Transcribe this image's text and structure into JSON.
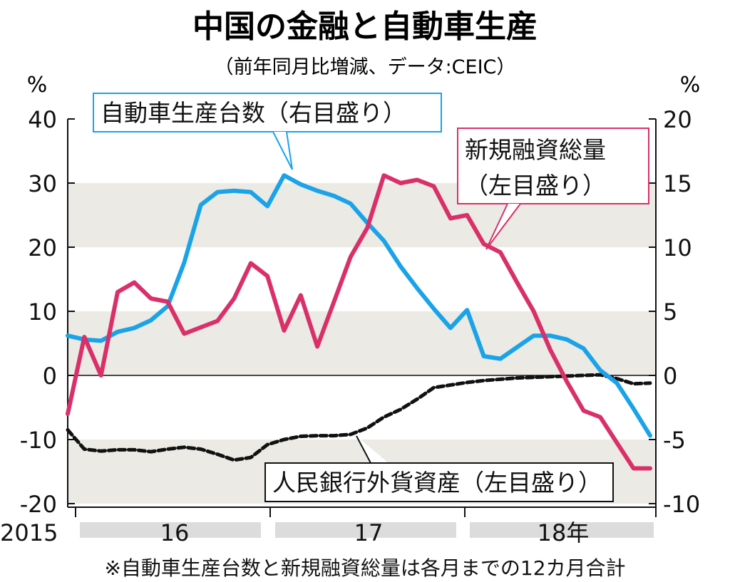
{
  "chart_data": {
    "type": "line",
    "title": "中国の金融と自動車生産",
    "subtitle": "（前年同月比増減、データ:CEIC）",
    "left_unit": "%",
    "right_unit": "%",
    "left_axis": {
      "ylim": [
        -20,
        40
      ],
      "ticks": [
        "40",
        "30",
        "20",
        "10",
        "0",
        "-10",
        "-20"
      ]
    },
    "right_axis": {
      "ylim": [
        -10,
        20
      ],
      "ticks": [
        "20",
        "15",
        "10",
        "5",
        "0",
        "-5",
        "-10"
      ]
    },
    "x_tick_labels": [
      "2015",
      "16",
      "17",
      "18年"
    ],
    "x_range": [
      "2015-12",
      "2018-11"
    ],
    "x": [
      "2015-12",
      "2016-01",
      "2016-02",
      "2016-03",
      "2016-04",
      "2016-05",
      "2016-06",
      "2016-07",
      "2016-08",
      "2016-09",
      "2016-10",
      "2016-11",
      "2016-12",
      "2017-01",
      "2017-02",
      "2017-03",
      "2017-04",
      "2017-05",
      "2017-06",
      "2017-07",
      "2017-08",
      "2017-09",
      "2017-10",
      "2017-11",
      "2017-12",
      "2018-01",
      "2018-02",
      "2018-03",
      "2018-04",
      "2018-05",
      "2018-06",
      "2018-07",
      "2018-08",
      "2018-09",
      "2018-10",
      "2018-11"
    ],
    "series": [
      {
        "name": "自動車生産台数（右目盛り）",
        "axis": "right",
        "color": "#1aa3e8",
        "values": [
          3.1,
          2.8,
          2.7,
          3.4,
          3.7,
          4.3,
          5.4,
          8.8,
          13.3,
          14.3,
          14.4,
          14.3,
          13.2,
          15.6,
          14.9,
          14.4,
          14.0,
          13.4,
          11.9,
          10.5,
          8.5,
          6.8,
          5.2,
          3.7,
          5.1,
          1.5,
          1.3,
          2.2,
          3.1,
          3.1,
          2.8,
          2.1,
          0.4,
          -0.6,
          -2.6,
          -4.7
        ]
      },
      {
        "name": "新規融資総量（左目盛り）",
        "axis": "left",
        "color": "#d9306a",
        "values": [
          -6,
          6,
          0,
          13,
          14.5,
          12,
          11.5,
          6.5,
          7.5,
          8.5,
          12,
          17.5,
          15.5,
          7,
          12.5,
          4.5,
          11.5,
          18.5,
          23,
          31.2,
          30,
          30.5,
          29.5,
          24.5,
          25,
          20.5,
          19.2,
          14.5,
          10,
          4,
          -1,
          -5.5,
          -6.5,
          -10.5,
          -14.5,
          -14.5
        ]
      },
      {
        "name": "人民銀行外貨資産（左目盛り）",
        "axis": "left",
        "color": "#111111",
        "dashed": true,
        "values": [
          -8.5,
          -11.5,
          -11.8,
          -11.6,
          -11.6,
          -11.9,
          -11.5,
          -11.2,
          -11.5,
          -12.3,
          -13.2,
          -12.8,
          -10.8,
          -10,
          -9.5,
          -9.4,
          -9.4,
          -9.2,
          -8.2,
          -6.5,
          -5.3,
          -3.7,
          -1.9,
          -1.5,
          -1.1,
          -0.8,
          -0.6,
          -0.4,
          -0.3,
          -0.2,
          -0.1,
          0,
          0.1,
          -0.5,
          -1.3,
          -1.2
        ]
      }
    ],
    "callouts": [
      {
        "text": "自動車生産台数（右目盛り）",
        "color": "#1aa3e8"
      },
      {
        "lines": [
          "新規融資総量",
          "（左目盛り）"
        ],
        "color": "#d9306a"
      },
      {
        "text": "人民銀行外貨資産（左目盛り）",
        "color": "#111111"
      }
    ],
    "bands": "alternating light-gray horizontal bands at 20–30, 0–10, -10–-20 (left scale)",
    "grid": false,
    "note": "※自動車生産台数と新規融資総量は各月までの12カ月合計"
  }
}
